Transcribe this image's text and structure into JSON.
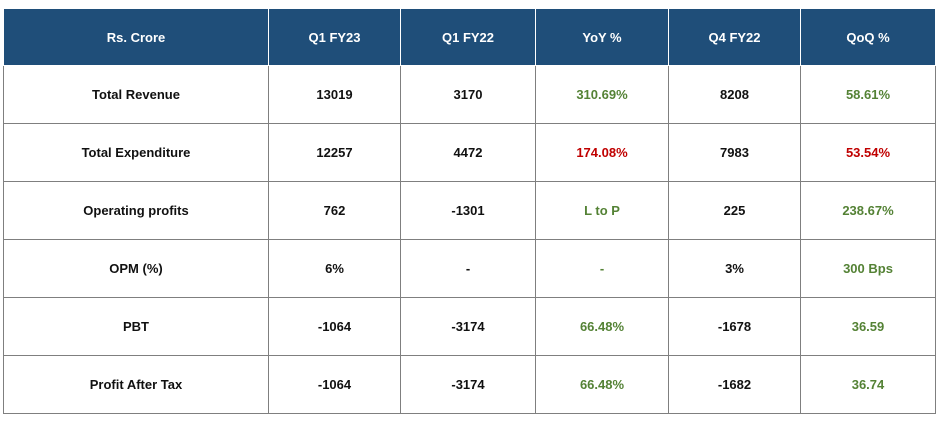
{
  "table": {
    "header": [
      "Rs. Crore",
      "Q1 FY23",
      "Q1 FY22",
      "YoY %",
      "Q4 FY22",
      "QoQ %"
    ],
    "rows": [
      [
        "Total Revenue",
        "13019",
        "3170",
        "310.69%",
        "8208",
        "58.61%"
      ],
      [
        "Total Expenditure",
        "12257",
        "4472",
        "174.08%",
        "7983",
        "53.54%"
      ],
      [
        "Operating profits",
        "762",
        "-1301",
        "L to P",
        "225",
        "238.67%"
      ],
      [
        "OPM (%)",
        "6%",
        "-",
        "-",
        "3%",
        "300 Bps"
      ],
      [
        "PBT",
        "-1064",
        "-3174",
        "66.48%",
        "-1678",
        "36.59"
      ],
      [
        "Profit After Tax",
        "-1064",
        "-3174",
        "66.48%",
        "-1682",
        "36.74"
      ]
    ]
  }
}
